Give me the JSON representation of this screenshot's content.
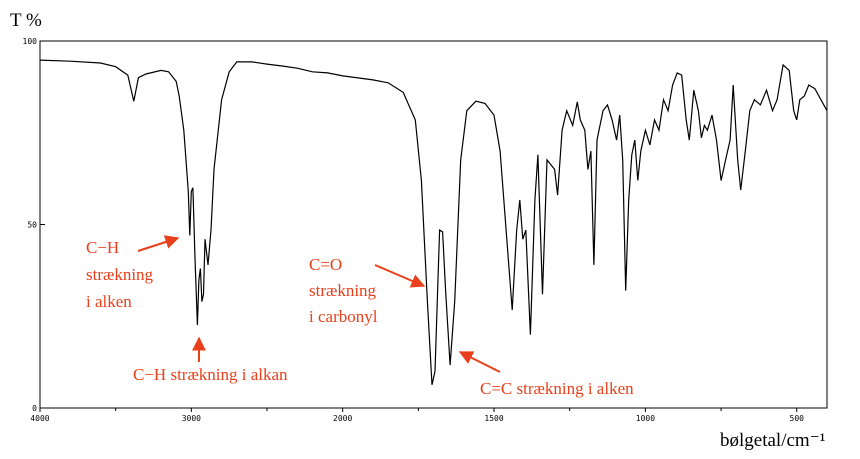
{
  "chart_data": {
    "type": "line",
    "y_title": "T %",
    "x_title": "bølgetal/cm⁻¹",
    "x": [
      4000,
      3800,
      3600,
      3500,
      3420,
      3380,
      3350,
      3300,
      3200,
      3150,
      3100,
      3080,
      3050,
      3020,
      3010,
      3000,
      2990,
      2975,
      2960,
      2950,
      2940,
      2930,
      2920,
      2910,
      2890,
      2870,
      2850,
      2800,
      2750,
      2700,
      2600,
      2500,
      2400,
      2300,
      2200,
      2100,
      2000,
      1900,
      1850,
      1800,
      1760,
      1740,
      1720,
      1705,
      1695,
      1680,
      1670,
      1660,
      1645,
      1630,
      1610,
      1590,
      1560,
      1530,
      1500,
      1480,
      1460,
      1440,
      1425,
      1415,
      1405,
      1395,
      1380,
      1365,
      1355,
      1340,
      1325,
      1300,
      1290,
      1275,
      1260,
      1240,
      1225,
      1215,
      1200,
      1190,
      1180,
      1170,
      1160,
      1140,
      1125,
      1110,
      1095,
      1085,
      1075,
      1065,
      1055,
      1045,
      1035,
      1025,
      1015,
      1000,
      985,
      970,
      955,
      940,
      925,
      910,
      895,
      880,
      865,
      855,
      840,
      825,
      815,
      805,
      795,
      780,
      765,
      750,
      735,
      720,
      710,
      695,
      685,
      670,
      655,
      640,
      620,
      600,
      580,
      565,
      545,
      525,
      510,
      500,
      490,
      475,
      460,
      440,
      420,
      400
    ],
    "values": [
      94.8,
      94.5,
      94,
      93,
      90.7,
      83.6,
      90,
      91,
      92,
      91.6,
      89,
      85,
      75.7,
      59,
      47,
      59,
      60,
      40,
      22.6,
      35,
      38,
      29,
      31,
      46,
      39,
      48.5,
      65,
      84,
      91.6,
      94.3,
      94.3,
      93.7,
      93.2,
      92.6,
      91.6,
      91.3,
      90.5,
      89.4,
      88.6,
      86,
      78.5,
      62,
      29,
      6.3,
      10,
      48.5,
      48,
      32,
      11.7,
      29,
      67.6,
      81,
      83.6,
      83,
      79.8,
      70,
      48.5,
      26.7,
      48.5,
      56.7,
      46,
      48.5,
      20,
      56.7,
      69,
      31,
      67.6,
      65,
      58,
      75.7,
      81,
      77,
      83.4,
      78.5,
      75.7,
      65,
      70,
      39,
      73,
      81,
      82.6,
      78.5,
      73,
      79.8,
      67.6,
      32,
      56.7,
      69,
      73,
      62,
      70,
      75.7,
      71.7,
      78.5,
      75.7,
      84,
      81,
      88,
      91.3,
      90.7,
      78.5,
      73,
      86.6,
      81,
      73.6,
      77,
      75.7,
      79.8,
      73,
      62,
      67.6,
      73,
      88,
      67.6,
      59.4,
      70,
      81,
      84,
      82.6,
      86.6,
      81,
      84,
      93.5,
      92,
      81,
      78.5,
      84,
      85,
      88,
      87,
      84,
      81
    ],
    "color": "#000000",
    "xlim": [
      4000,
      400
    ],
    "x_scale_change": 2000,
    "xticks": [
      4000,
      3000,
      2000,
      1500,
      1000,
      500
    ],
    "xminorticks": [
      3500,
      2500,
      1750,
      1250,
      750
    ],
    "ylim": [
      0,
      100
    ],
    "yticks": [
      0,
      50,
      100
    ],
    "annotations": [
      {
        "lines": [
          "C−H",
          "strækning",
          "i alken"
        ]
      },
      {
        "lines": [
          "C−H strækning i alkan"
        ]
      },
      {
        "lines": [
          "C=O",
          "strækning",
          "i carbonyl"
        ]
      },
      {
        "lines": [
          "C=C strækning i alken"
        ]
      }
    ],
    "annotation_color": "#e8401c"
  }
}
